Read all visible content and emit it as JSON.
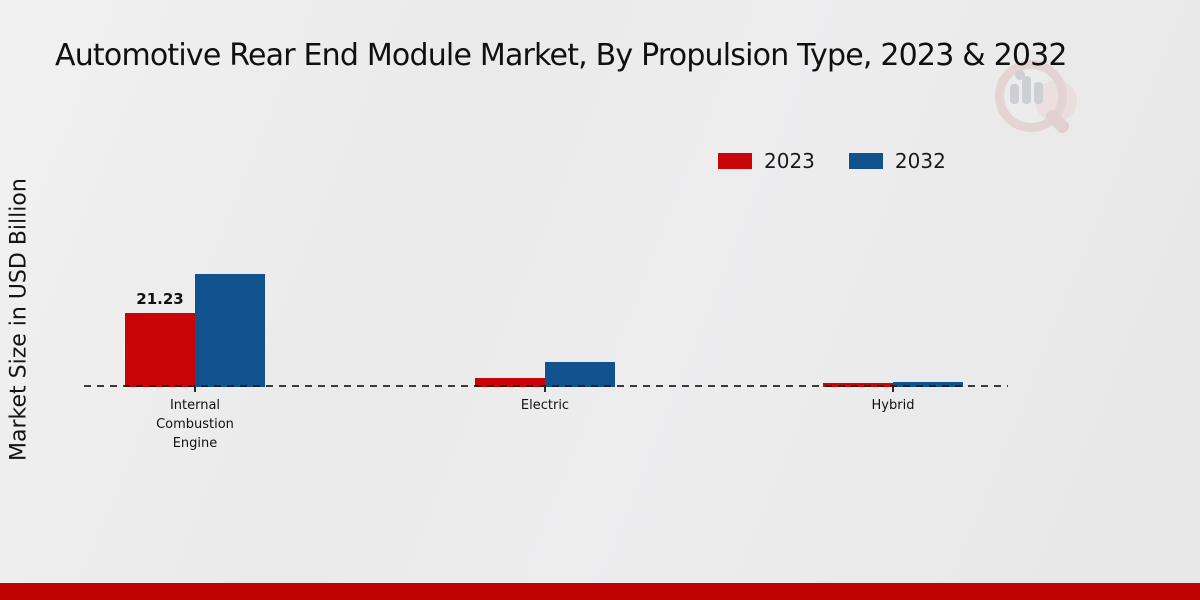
{
  "chart_data": {
    "type": "bar",
    "title": "Automotive Rear End Module Market, By Propulsion Type, 2023 & 2032",
    "ylabel": "Market Size in USD Billion",
    "xlabel": "",
    "categories": [
      "Internal Combustion Engine",
      "Electric",
      "Hybrid"
    ],
    "series": [
      {
        "name": "2023",
        "color": "#c90404",
        "values": [
          21.23,
          2.6,
          1.1
        ]
      },
      {
        "name": "2032",
        "color": "#11518d",
        "values": [
          32.4,
          7.2,
          1.4
        ]
      }
    ],
    "data_labels": [
      {
        "series_index": 0,
        "category_index": 0,
        "text": "21.23"
      }
    ],
    "baseline_value": 0,
    "axis_line_style": "dashed",
    "grid": false,
    "legend_position": "top-right"
  },
  "footer_bar_color": "#bf0300",
  "watermark_icon": "magnifier-bar-chart-logo"
}
